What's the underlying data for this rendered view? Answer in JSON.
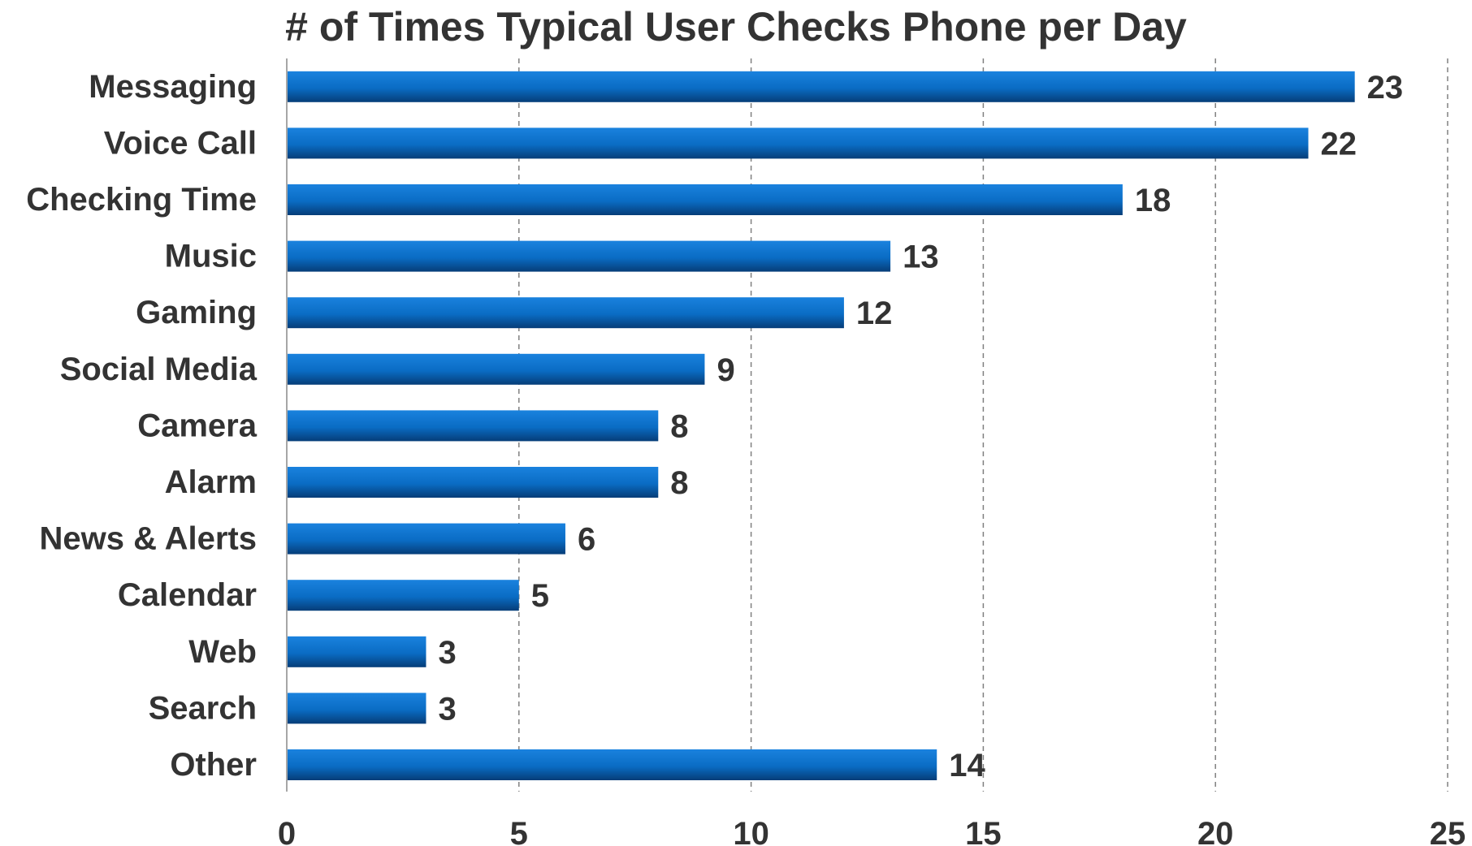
{
  "chart_data": {
    "type": "bar",
    "orientation": "horizontal",
    "title": "# of Times Typical User Checks Phone per Day",
    "categories": [
      "Messaging",
      "Voice Call",
      "Checking Time",
      "Music",
      "Gaming",
      "Social Media",
      "Camera",
      "Alarm",
      "News & Alerts",
      "Calendar",
      "Web",
      "Search",
      "Other"
    ],
    "values": [
      23,
      22,
      18,
      13,
      12,
      9,
      8,
      8,
      6,
      5,
      3,
      3,
      14
    ],
    "xlabel": "",
    "ylabel": "",
    "xlim": [
      0,
      25
    ],
    "xticks": [
      0,
      5,
      10,
      15,
      20,
      25
    ],
    "grid": "vertical dashed",
    "legend": "none",
    "data_labels": true,
    "bar_color": "#0a6cc4",
    "bar_color_dark": "#063d78",
    "text_color": "#333333",
    "grid_color": "#808080"
  }
}
